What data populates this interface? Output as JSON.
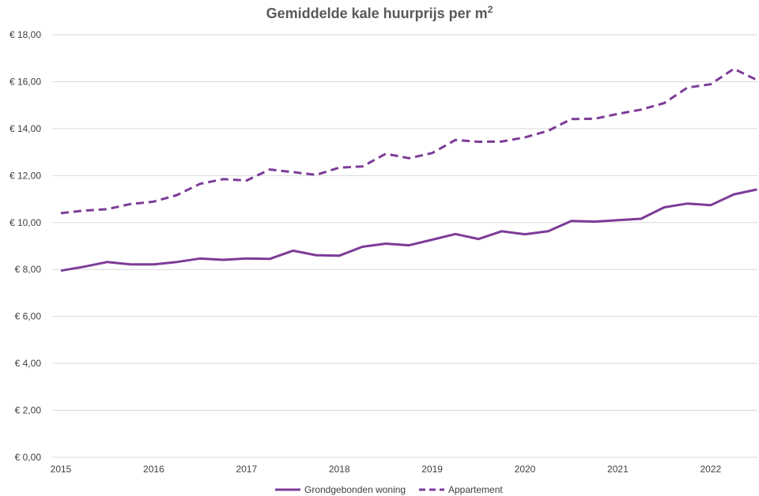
{
  "chart_data": {
    "type": "line",
    "title": "Gemiddelde kale huurprijs per m",
    "title_superscript": "2",
    "xlabel": "",
    "ylabel": "",
    "ylim": [
      0,
      18
    ],
    "y_ticks": [
      0,
      2,
      4,
      6,
      8,
      10,
      12,
      14,
      16,
      18
    ],
    "y_tick_labels": [
      "€ 0,00",
      "€ 2,00",
      "€ 4,00",
      "€ 6,00",
      "€ 8,00",
      "€ 10,00",
      "€ 12,00",
      "€ 14,00",
      "€ 16,00",
      "€ 18,00"
    ],
    "x_tick_labels": [
      "2015",
      "2016",
      "2017",
      "2018",
      "2019",
      "2020",
      "2021",
      "2022"
    ],
    "periods": [
      "2015 Q1",
      "2015 Q2",
      "2015 Q3",
      "2015 Q4",
      "2016 Q1",
      "2016 Q2",
      "2016 Q3",
      "2016 Q4",
      "2017 Q1",
      "2017 Q2",
      "2017 Q3",
      "2017 Q4",
      "2018 Q1",
      "2018 Q2",
      "2018 Q3",
      "2018 Q4",
      "2019 Q1",
      "2019 Q2",
      "2019 Q3",
      "2019 Q4",
      "2020 Q1",
      "2020 Q2",
      "2020 Q3",
      "2020 Q4",
      "2021 Q1",
      "2021 Q2",
      "2021 Q3",
      "2021 Q4",
      "2022 Q1",
      "2022 Q2",
      "2022 Q3"
    ],
    "grid": true,
    "legend_position": "bottom",
    "color": "#7d3c98",
    "series": [
      {
        "name": "Grondgebonden woning",
        "style": "solid",
        "values": [
          7.95,
          8.12,
          8.32,
          8.22,
          8.22,
          8.32,
          8.47,
          8.41,
          8.47,
          8.45,
          8.8,
          8.61,
          8.59,
          8.97,
          9.1,
          9.03,
          9.27,
          9.51,
          9.3,
          9.63,
          9.5,
          9.63,
          10.07,
          10.04,
          10.1,
          10.16,
          10.65,
          10.81,
          10.74,
          11.2,
          11.41
        ]
      },
      {
        "name": "Appartement",
        "style": "dashed",
        "values": [
          10.4,
          10.51,
          10.57,
          10.79,
          10.89,
          11.17,
          11.65,
          11.85,
          11.79,
          12.26,
          12.15,
          12.03,
          12.34,
          12.39,
          12.93,
          12.74,
          12.96,
          13.52,
          13.44,
          13.45,
          13.63,
          13.91,
          14.41,
          14.42,
          14.63,
          14.81,
          15.09,
          15.75,
          15.89,
          16.55,
          16.07
        ]
      }
    ]
  }
}
